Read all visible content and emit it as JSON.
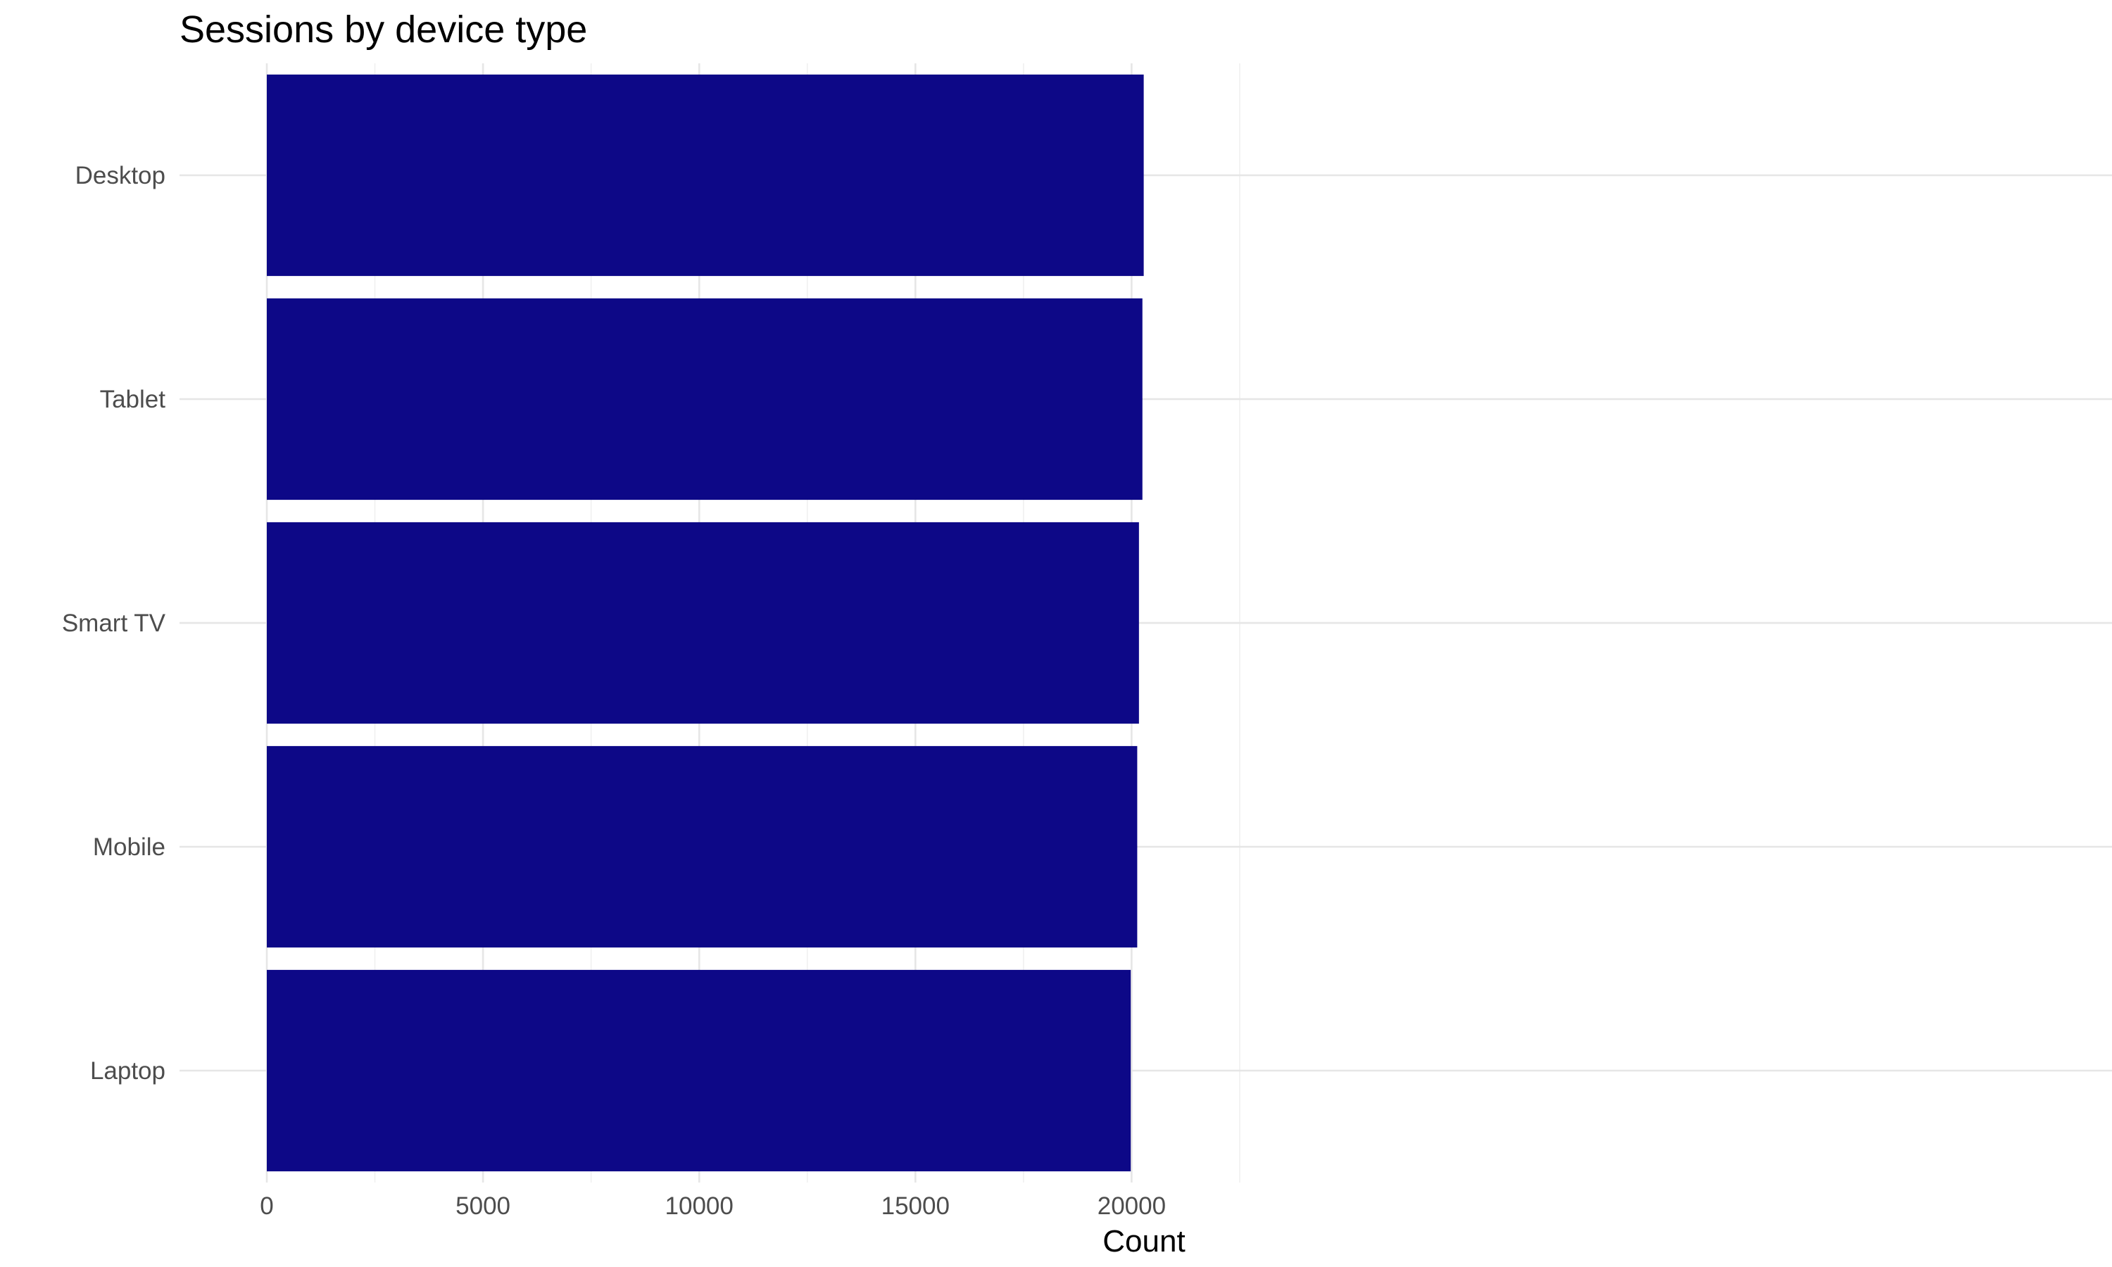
{
  "chart_data": {
    "type": "bar",
    "orientation": "horizontal",
    "title": "Sessions by device type",
    "xlabel": "Count",
    "ylabel": "",
    "categories": [
      "Desktop",
      "Tablet",
      "Smart TV",
      "Mobile",
      "Laptop"
    ],
    "values": [
      20280,
      20250,
      20170,
      20130,
      19980
    ],
    "xlim": [
      0,
      21000
    ],
    "x_ticks": [
      0,
      5000,
      10000,
      15000,
      20000
    ],
    "x_tick_labels": [
      "0",
      "5000",
      "10000",
      "15000",
      "20000"
    ],
    "grid": true,
    "legend": "none",
    "bar_color": "#0d0887"
  }
}
